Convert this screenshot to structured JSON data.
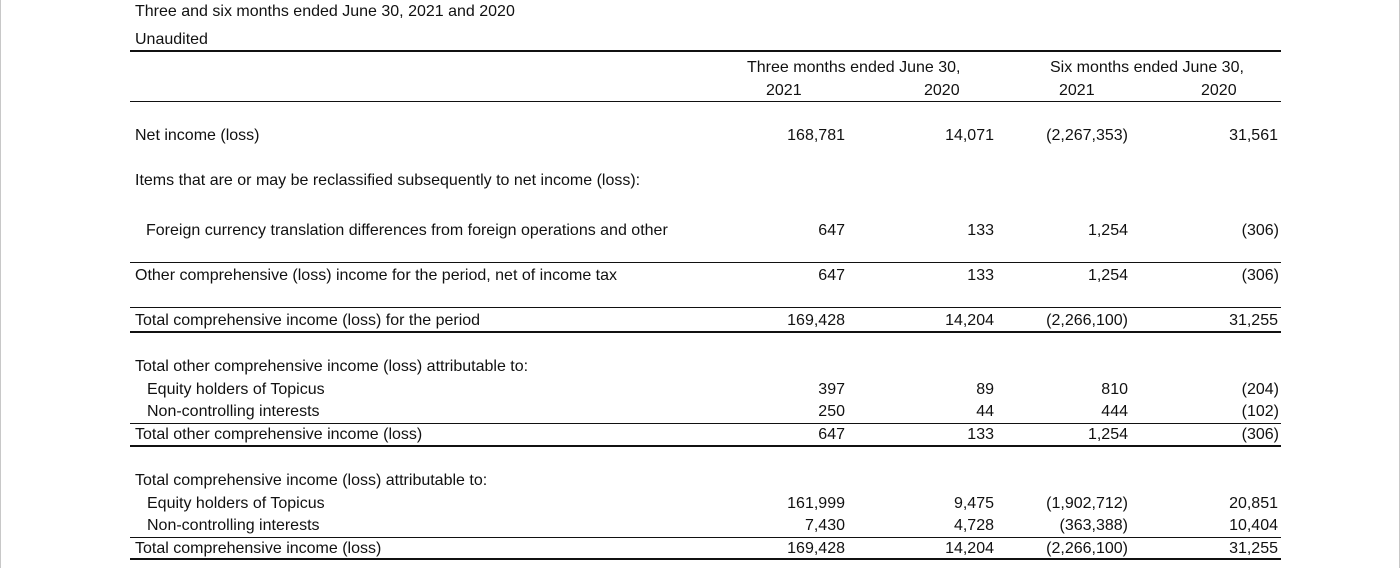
{
  "header": {
    "period_line": "Three and six months ended June 30, 2021 and 2020",
    "audit_status": "Unaudited"
  },
  "columns": {
    "group1": "Three months ended June 30,",
    "group2": "Six months ended June 30,",
    "y1": "2021",
    "y2": "2020",
    "y3": "2021",
    "y4": "2020"
  },
  "rows": {
    "net_income": {
      "label": "Net income (loss)",
      "v": [
        "168,781",
        "14,071",
        "(2,267,353)",
        "31,561"
      ]
    },
    "items_heading": {
      "label": "Items that are or may be reclassified subsequently to net income (loss):"
    },
    "fx_translation": {
      "label": "Foreign currency translation differences from foreign operations and other",
      "v": [
        "647",
        "133",
        "1,254",
        "(306)"
      ]
    },
    "other_comprehensive": {
      "label": "Other comprehensive (loss) income for the period, net of income tax",
      "v": [
        "647",
        "133",
        "1,254",
        "(306)"
      ]
    },
    "total_comprehensive": {
      "label": "Total comprehensive income (loss) for the period",
      "v": [
        "169,428",
        "14,204",
        "(2,266,100)",
        "31,255"
      ]
    },
    "toci_heading": {
      "label": "Total other comprehensive income (loss) attributable to:"
    },
    "toci_equity": {
      "label": "Equity holders of Topicus",
      "v": [
        "397",
        "89",
        "810",
        "(204)"
      ]
    },
    "toci_nci": {
      "label": "Non-controlling interests",
      "v": [
        "250",
        "44",
        "444",
        "(102)"
      ]
    },
    "toci_total": {
      "label": "Total other comprehensive income (loss)",
      "v": [
        "647",
        "133",
        "1,254",
        "(306)"
      ]
    },
    "tci_heading": {
      "label": "Total comprehensive income (loss) attributable to:"
    },
    "tci_equity": {
      "label": "Equity holders of Topicus",
      "v": [
        "161,999",
        "9,475",
        "(1,902,712)",
        "20,851"
      ]
    },
    "tci_nci": {
      "label": "Non-controlling interests",
      "v": [
        "7,430",
        "4,728",
        "(363,388)",
        "10,404"
      ]
    },
    "tci_total": {
      "label": "Total comprehensive income (loss)",
      "v": [
        "169,428",
        "14,204",
        "(2,266,100)",
        "31,255"
      ]
    }
  }
}
